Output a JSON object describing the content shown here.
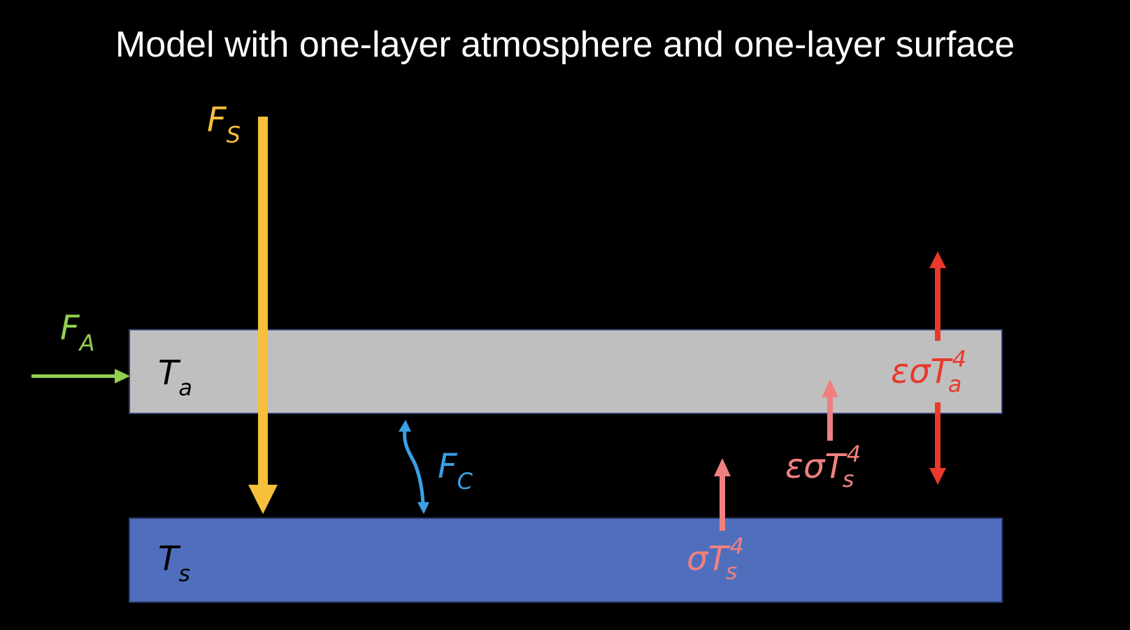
{
  "title": "Model with one-layer atmosphere and one-layer surface",
  "layers": {
    "atmosphere": {
      "symbol": "T",
      "subscript": "a",
      "color": "#bfbfbf"
    },
    "surface": {
      "symbol": "T",
      "subscript": "s",
      "color": "#4f6fbd"
    }
  },
  "fluxes": {
    "solar": {
      "symbol": "F",
      "subscript": "S",
      "color": "#f6bf3c"
    },
    "advective": {
      "symbol": "F",
      "subscript": "A",
      "color": "#92d050"
    },
    "conductive": {
      "symbol": "F",
      "subscript": "C",
      "color": "#3aa0e6"
    },
    "surface_emission": {
      "prefix": "σ",
      "symbol": "T",
      "subscript": "s",
      "superscript": "4",
      "color": "#f08080"
    },
    "surface_emission_absorbed": {
      "prefix": "εσ",
      "symbol": "T",
      "subscript": "s",
      "superscript": "4",
      "color": "#f08080"
    },
    "atmosphere_emission": {
      "prefix": "εσ",
      "symbol": "T",
      "subscript": "a",
      "superscript": "4",
      "color": "#e8392c"
    }
  }
}
